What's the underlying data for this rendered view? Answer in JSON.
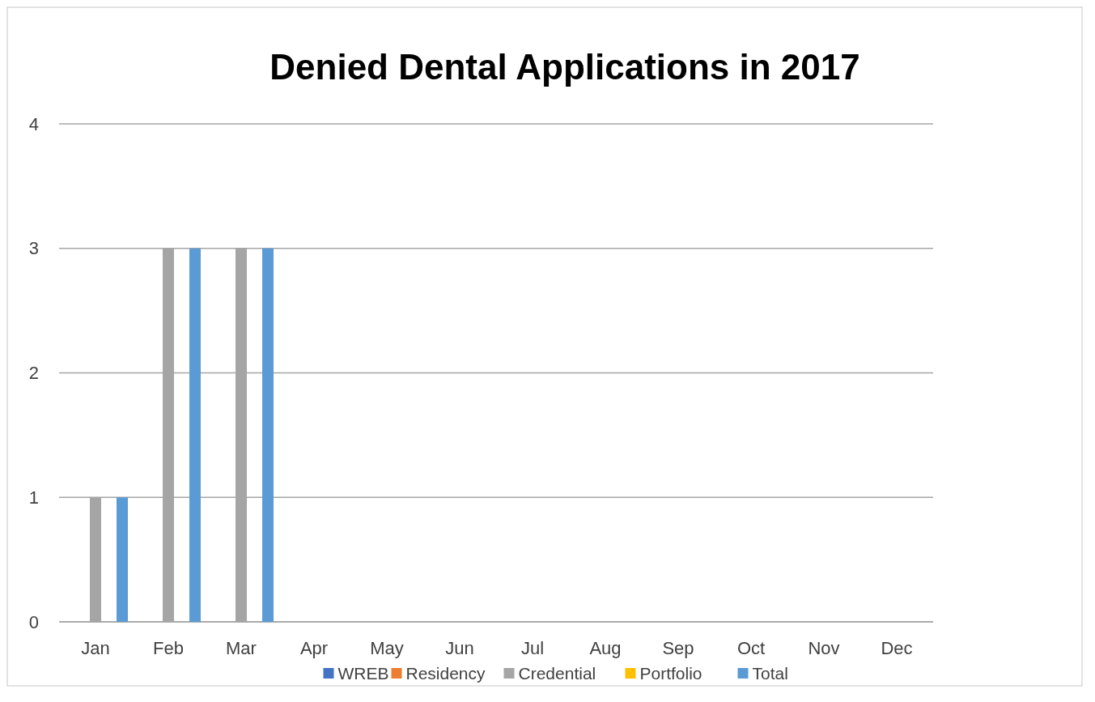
{
  "chart_data": {
    "type": "bar",
    "title": "Denied Dental Applications in 2017",
    "categories": [
      "Jan",
      "Feb",
      "Mar",
      "Apr",
      "May",
      "Jun",
      "Jul",
      "Aug",
      "Sep",
      "Oct",
      "Nov",
      "Dec"
    ],
    "series": [
      {
        "name": "WREB",
        "color": "#4472c4",
        "values": [
          0,
          0,
          0,
          null,
          null,
          null,
          null,
          null,
          null,
          null,
          null,
          null
        ]
      },
      {
        "name": "Residency",
        "color": "#ed7d31",
        "values": [
          0,
          0,
          0,
          null,
          null,
          null,
          null,
          null,
          null,
          null,
          null,
          null
        ]
      },
      {
        "name": "Credential",
        "color": "#a5a5a5",
        "values": [
          1,
          3,
          3,
          null,
          null,
          null,
          null,
          null,
          null,
          null,
          null,
          null
        ]
      },
      {
        "name": "Portfolio",
        "color": "#ffc000",
        "values": [
          0,
          0,
          0,
          null,
          null,
          null,
          null,
          null,
          null,
          null,
          null,
          null
        ]
      },
      {
        "name": "Total",
        "color": "#5b9bd5",
        "values": [
          1,
          3,
          3,
          null,
          null,
          null,
          null,
          null,
          null,
          null,
          null,
          null
        ]
      }
    ],
    "ylim": [
      0,
      4
    ],
    "yticks": [
      0,
      1,
      2,
      3,
      4
    ],
    "grid": "y",
    "legend": "bottom"
  }
}
